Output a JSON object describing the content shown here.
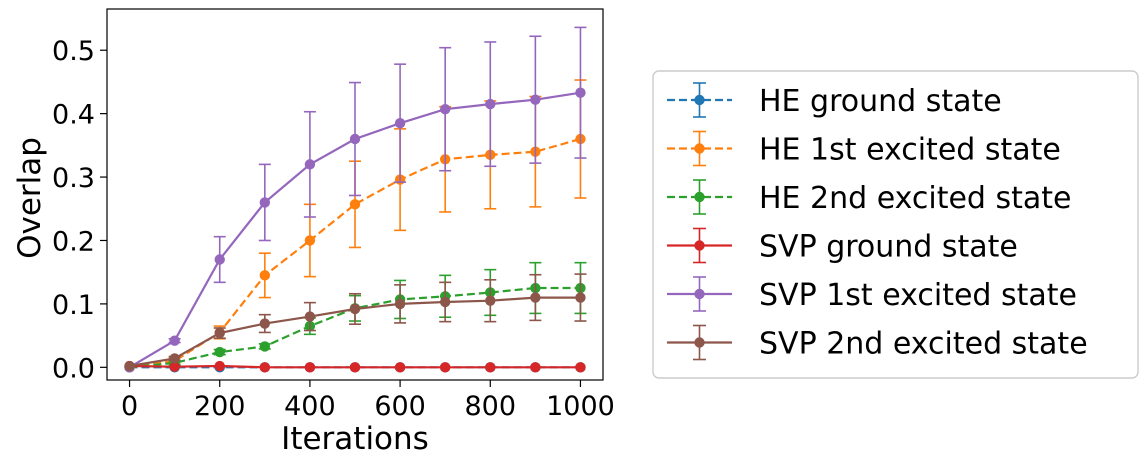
{
  "chart_data": {
    "type": "line",
    "xlabel": "Iterations",
    "ylabel": "Overlap",
    "xlim": [
      -50,
      1050
    ],
    "ylim": [
      -0.02,
      0.565
    ],
    "x_ticks": [
      0,
      200,
      400,
      600,
      800,
      1000
    ],
    "y_ticks": [
      0.0,
      0.1,
      0.2,
      0.3,
      0.4,
      0.5
    ],
    "y_tick_labels": [
      "0.0",
      "0.1",
      "0.2",
      "0.3",
      "0.4",
      "0.5"
    ],
    "legend_position": "right, outside plot",
    "x": [
      0,
      100,
      200,
      300,
      400,
      500,
      600,
      700,
      800,
      900,
      1000
    ],
    "series": [
      {
        "name": "HE ground state",
        "color": "#1f77b4",
        "dashed": true,
        "values": [
          0.0,
          0.0,
          0.0,
          0.0,
          0.0,
          0.0,
          0.0,
          0.0,
          0.0,
          0.0,
          0.0
        ],
        "errors": [
          0.0,
          0.0,
          0.0,
          0.0,
          0.0,
          0.0,
          0.0,
          0.0,
          0.0,
          0.0,
          0.0
        ]
      },
      {
        "name": "HE 1st excited state",
        "color": "#ff7f0e",
        "dashed": true,
        "values": [
          0.0,
          0.01,
          0.055,
          0.145,
          0.2,
          0.257,
          0.296,
          0.328,
          0.335,
          0.34,
          0.36
        ],
        "errors": [
          0.0,
          0.005,
          0.01,
          0.035,
          0.057,
          0.068,
          0.08,
          0.083,
          0.085,
          0.087,
          0.093
        ]
      },
      {
        "name": "HE 2nd excited state",
        "color": "#2ca02c",
        "dashed": true,
        "values": [
          0.0,
          0.007,
          0.024,
          0.033,
          0.065,
          0.093,
          0.107,
          0.112,
          0.118,
          0.125,
          0.125
        ],
        "errors": [
          0.0,
          0.003,
          0.004,
          0.004,
          0.013,
          0.02,
          0.03,
          0.033,
          0.036,
          0.04,
          0.04
        ]
      },
      {
        "name": "SVP ground state",
        "color": "#d62728",
        "dashed": false,
        "values": [
          0.002,
          0.001,
          0.002,
          0.0,
          0.0,
          0.0,
          0.0,
          0.0,
          0.0,
          0.0,
          0.0
        ],
        "errors": [
          0.0,
          0.0,
          0.0,
          0.0,
          0.0,
          0.0,
          0.0,
          0.0,
          0.0,
          0.0,
          0.0
        ]
      },
      {
        "name": "SVP 1st excited state",
        "color": "#9467bd",
        "dashed": false,
        "values": [
          0.0,
          0.042,
          0.17,
          0.26,
          0.32,
          0.36,
          0.385,
          0.407,
          0.415,
          0.422,
          0.433
        ],
        "errors": [
          0.0,
          0.003,
          0.036,
          0.06,
          0.083,
          0.089,
          0.093,
          0.097,
          0.098,
          0.1,
          0.103
        ]
      },
      {
        "name": "SVP 2nd excited state",
        "color": "#8c564b",
        "dashed": false,
        "values": [
          0.002,
          0.014,
          0.054,
          0.069,
          0.08,
          0.092,
          0.1,
          0.103,
          0.105,
          0.11,
          0.11
        ],
        "errors": [
          0.0,
          0.003,
          0.008,
          0.014,
          0.022,
          0.024,
          0.03,
          0.031,
          0.033,
          0.036,
          0.037
        ]
      }
    ]
  }
}
